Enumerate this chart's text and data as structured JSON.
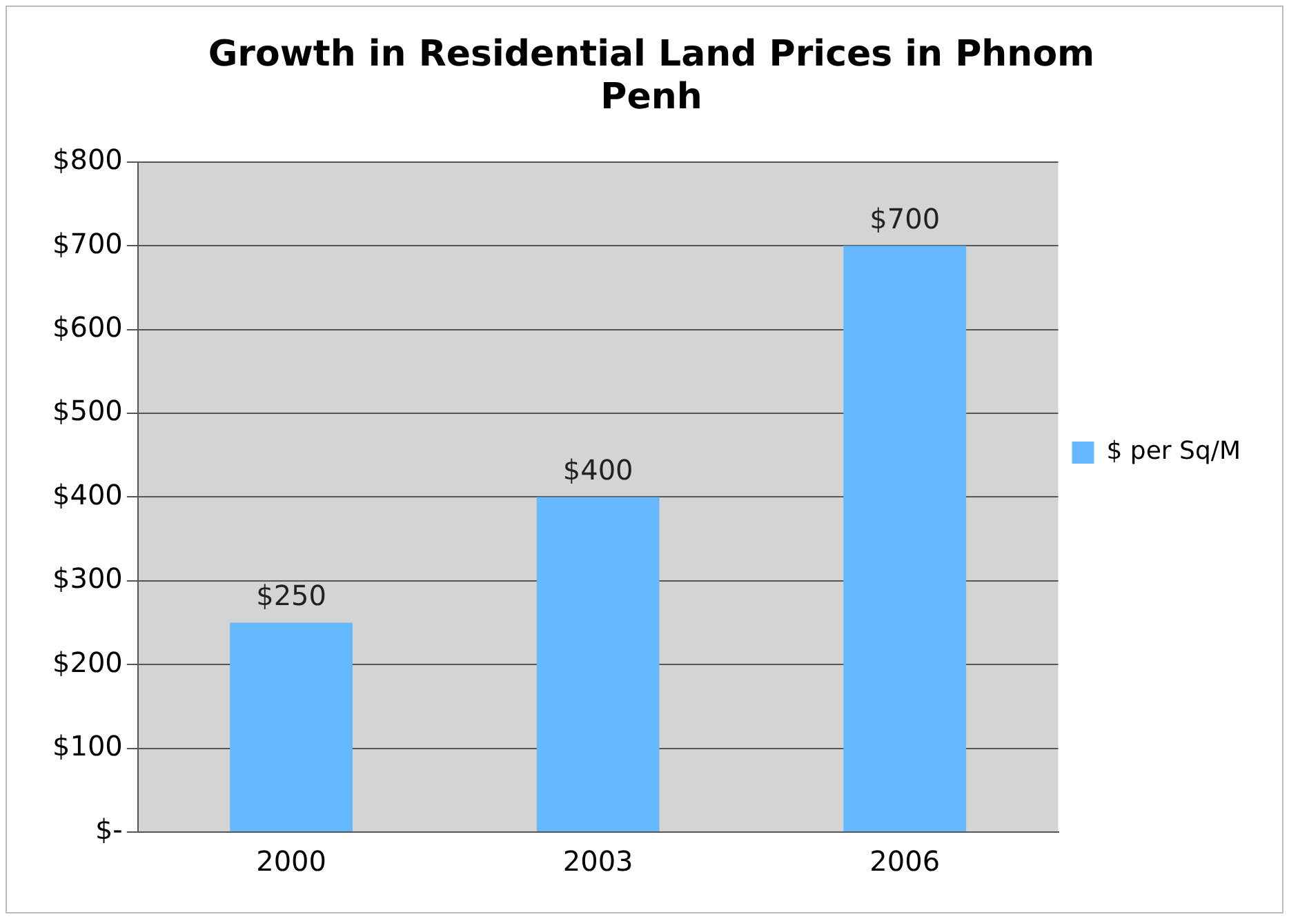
{
  "chart_data": {
    "type": "bar",
    "title": "Growth in Residential Land Prices in Phnom Penh",
    "categories": [
      "2000",
      "2003",
      "2006"
    ],
    "series": [
      {
        "name": "$ per Sq/M",
        "color": "#66b8ff",
        "values": [
          250,
          400,
          700
        ],
        "value_labels": [
          "$250",
          "$400",
          "$700"
        ]
      }
    ],
    "ylim": [
      0,
      800
    ],
    "yticks": [
      {
        "value": 0,
        "label": "$-"
      },
      {
        "value": 100,
        "label": "$100"
      },
      {
        "value": 200,
        "label": "$200"
      },
      {
        "value": 300,
        "label": "$300"
      },
      {
        "value": 400,
        "label": "$400"
      },
      {
        "value": 500,
        "label": "$500"
      },
      {
        "value": 600,
        "label": "$600"
      },
      {
        "value": 700,
        "label": "$700"
      },
      {
        "value": 800,
        "label": "$800"
      }
    ],
    "grid": "y",
    "legend": "right"
  }
}
